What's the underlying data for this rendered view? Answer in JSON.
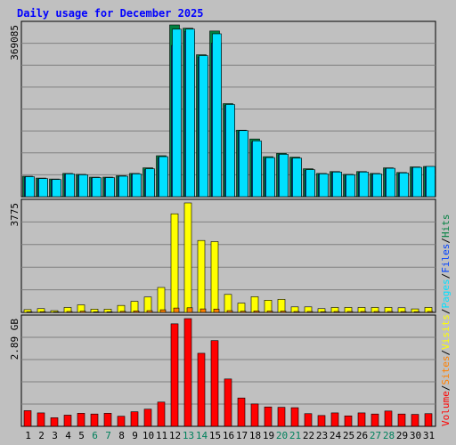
{
  "chart_data": {
    "type": "bar",
    "title": "Daily usage for December 2025",
    "categories": [
      "1",
      "2",
      "3",
      "4",
      "5",
      "6",
      "7",
      "8",
      "9",
      "10",
      "11",
      "12",
      "13",
      "14",
      "15",
      "16",
      "17",
      "18",
      "19",
      "20",
      "21",
      "22",
      "23",
      "24",
      "25",
      "26",
      "27",
      "28",
      "29",
      "30",
      "31"
    ],
    "weekend_days": [
      "6",
      "7",
      "13",
      "14",
      "20",
      "21",
      "27",
      "28"
    ],
    "panels": [
      {
        "name": "hits",
        "max_label": "369085",
        "ylim": [
          0,
          369085
        ],
        "series": [
          {
            "name": "Hits",
            "color": "#008040",
            "values": [
              44000,
              40000,
              38000,
              50000,
              48000,
              42000,
              42000,
              45000,
              50000,
              62000,
              88000,
              369085,
              362000,
              305000,
              356000,
              200000,
              143000,
              124000,
              86000,
              93000,
              85000,
              60000,
              50000,
              54000,
              48000,
              54000,
              50000,
              62000,
              52000,
              64000,
              65000
            ]
          },
          {
            "name": "Files",
            "color": "#0040FF",
            "values": [
              42000,
              38000,
              36000,
              48000,
              46000,
              40000,
              40000,
              43000,
              48000,
              58000,
              84000,
              325000,
              355000,
              300000,
              330000,
              196000,
              140000,
              117000,
              82000,
              90000,
              82000,
              57000,
              48000,
              52000,
              46000,
              52000,
              48000,
              60000,
              50000,
              62000,
              64000
            ]
          },
          {
            "name": "Pages",
            "color": "#00E0FF",
            "values": [
              43000,
              39000,
              37000,
              49000,
              47000,
              41000,
              41000,
              44000,
              49000,
              60000,
              86000,
              360000,
              360000,
              303000,
              350000,
              198000,
              142000,
              120000,
              84000,
              91000,
              83000,
              58000,
              49000,
              53000,
              47000,
              53000,
              49000,
              61000,
              51000,
              63000,
              65000
            ]
          }
        ]
      },
      {
        "name": "visits",
        "max_label": "3775",
        "ylim": [
          0,
          3775
        ],
        "series": [
          {
            "name": "Visits",
            "color": "#FFFF00",
            "values": [
              95,
              130,
              60,
              170,
              260,
              110,
              110,
              240,
              380,
              530,
              860,
              3400,
              3775,
              2480,
              2440,
              620,
              320,
              540,
              420,
              450,
              190,
              190,
              130,
              170,
              170,
              170,
              170,
              170,
              160,
              120,
              170
            ]
          },
          {
            "name": "Sites",
            "color": "#FF8000",
            "values": [
              20,
              25,
              15,
              30,
              40,
              20,
              20,
              35,
              50,
              60,
              90,
              150,
              160,
              120,
              115,
              60,
              40,
              50,
              45,
              45,
              30,
              30,
              25,
              30,
              30,
              30,
              30,
              30,
              28,
              25,
              30
            ]
          }
        ]
      },
      {
        "name": "volume",
        "max_label": "2.89 GB",
        "ylim": [
          0,
          2.89
        ],
        "series": [
          {
            "name": "Volume",
            "color": "#FF0000",
            "values": [
              0.42,
              0.36,
              0.23,
              0.3,
              0.35,
              0.33,
              0.35,
              0.27,
              0.39,
              0.46,
              0.65,
              2.75,
              2.89,
              1.96,
              2.3,
              1.27,
              0.76,
              0.6,
              0.52,
              0.51,
              0.5,
              0.34,
              0.29,
              0.36,
              0.28,
              0.36,
              0.33,
              0.41,
              0.33,
              0.32,
              0.34
            ]
          }
        ]
      }
    ],
    "legend": [
      {
        "label": "Volume",
        "color": "#FF0000"
      },
      {
        "label": "Sites",
        "color": "#FF8000"
      },
      {
        "label": "Visits",
        "color": "#FFFF00"
      },
      {
        "label": "Pages",
        "color": "#00E0FF"
      },
      {
        "label": "Files",
        "color": "#0040FF"
      },
      {
        "label": "Hits",
        "color": "#008040"
      }
    ],
    "legend_separator": "/",
    "colors": {
      "background": "#C0C0C0",
      "plot_background": "#C0C0C0",
      "title": "#0000FF",
      "weekday_label": "#000000",
      "weekend_label": "#00805C",
      "gridline": "#808080"
    },
    "grid": true,
    "legend_placement": "right-vertical"
  }
}
